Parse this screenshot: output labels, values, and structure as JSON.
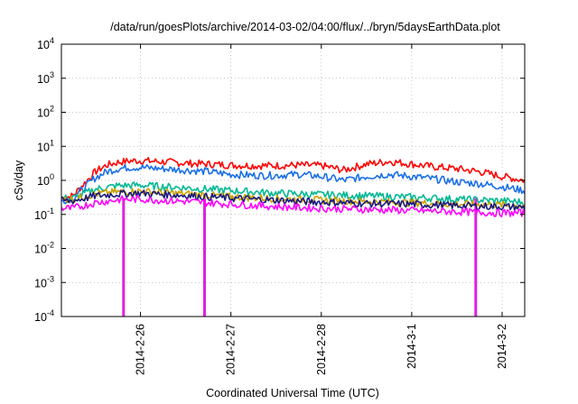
{
  "chart_data": {
    "type": "line",
    "title": "/data/run/goesPlots/archive/2014-03-02/04:00/flux/../bryn/5daysEarthData.plot",
    "xlabel": "Coordinated Universal Time (UTC)",
    "ylabel": "cSv/day",
    "yscale": "log",
    "ylim": [
      0.0001,
      10000
    ],
    "xlim": [
      "2014-02-25T03:00",
      "2014-03-02T06:00"
    ],
    "yticks": [
      {
        "value": 0.0001,
        "base": "10",
        "exp": "-4"
      },
      {
        "value": 0.001,
        "base": "10",
        "exp": "-3"
      },
      {
        "value": 0.01,
        "base": "10",
        "exp": "-2"
      },
      {
        "value": 0.1,
        "base": "10",
        "exp": "-1"
      },
      {
        "value": 1,
        "base": "10",
        "exp": "0"
      },
      {
        "value": 10,
        "base": "10",
        "exp": "1"
      },
      {
        "value": 100,
        "base": "10",
        "exp": "2"
      },
      {
        "value": 1000,
        "base": "10",
        "exp": "3"
      },
      {
        "value": 10000,
        "base": "10",
        "exp": "4"
      }
    ],
    "xticks": [
      {
        "value": "2014-02-26T00:00",
        "label": "2014-2-26"
      },
      {
        "value": "2014-02-27T00:00",
        "label": "2014-2-27"
      },
      {
        "value": "2014-02-28T00:00",
        "label": "2014-2-28"
      },
      {
        "value": "2014-03-01T00:00",
        "label": "2014-3-1"
      },
      {
        "value": "2014-03-02T00:00",
        "label": "2014-3-2"
      }
    ],
    "grid": true,
    "series": [
      {
        "color": "#ff0000",
        "x": [
          "2014-02-25T03:00",
          "2014-02-25T06:00",
          "2014-02-25T09:00",
          "2014-02-25T12:00",
          "2014-02-25T15:00",
          "2014-02-25T18:00",
          "2014-02-25T21:00",
          "2014-02-26T00:00",
          "2014-02-26T06:00",
          "2014-02-26T12:00",
          "2014-02-26T18:00",
          "2014-02-27T00:00",
          "2014-02-27T06:00",
          "2014-02-27T12:00",
          "2014-02-27T18:00",
          "2014-02-28T00:00",
          "2014-02-28T06:00",
          "2014-02-28T12:00",
          "2014-02-28T18:00",
          "2014-03-01T00:00",
          "2014-03-01T06:00",
          "2014-03-01T12:00",
          "2014-03-01T18:00",
          "2014-03-02T00:00",
          "2014-03-02T06:00"
        ],
        "y": [
          0.3,
          0.35,
          0.8,
          1.8,
          2.8,
          3.4,
          3.7,
          3.8,
          3.5,
          3.2,
          3.0,
          2.8,
          2.7,
          2.7,
          2.8,
          2.7,
          2.0,
          3.0,
          3.6,
          3.0,
          2.5,
          2.2,
          1.8,
          1.3,
          1.0
        ]
      },
      {
        "color": "#1a6fe8",
        "x": [
          "2014-02-25T03:00",
          "2014-02-25T06:00",
          "2014-02-25T09:00",
          "2014-02-25T12:00",
          "2014-02-25T15:00",
          "2014-02-25T18:00",
          "2014-02-25T21:00",
          "2014-02-26T00:00",
          "2014-02-26T06:00",
          "2014-02-26T12:00",
          "2014-02-26T18:00",
          "2014-02-27T00:00",
          "2014-02-27T06:00",
          "2014-02-27T12:00",
          "2014-02-27T18:00",
          "2014-02-28T00:00",
          "2014-02-28T06:00",
          "2014-02-28T12:00",
          "2014-02-28T18:00",
          "2014-03-01T00:00",
          "2014-03-01T06:00",
          "2014-03-01T12:00",
          "2014-03-01T18:00",
          "2014-03-02T00:00",
          "2014-03-02T06:00"
        ],
        "y": [
          0.25,
          0.3,
          0.6,
          1.2,
          1.8,
          2.2,
          2.4,
          2.4,
          2.2,
          2.0,
          1.8,
          1.5,
          1.4,
          1.4,
          1.5,
          1.3,
          1.0,
          1.3,
          1.5,
          1.3,
          1.1,
          0.9,
          0.8,
          0.65,
          0.5
        ]
      },
      {
        "color": "#00b894",
        "x": [
          "2014-02-25T03:00",
          "2014-02-25T06:00",
          "2014-02-25T12:00",
          "2014-02-25T18:00",
          "2014-02-26T00:00",
          "2014-02-26T12:00",
          "2014-02-27T00:00",
          "2014-02-27T12:00",
          "2014-02-28T00:00",
          "2014-02-28T12:00",
          "2014-03-01T00:00",
          "2014-03-01T12:00",
          "2014-03-02T00:00",
          "2014-03-02T06:00"
        ],
        "y": [
          0.3,
          0.3,
          0.55,
          0.7,
          0.72,
          0.6,
          0.5,
          0.42,
          0.38,
          0.35,
          0.32,
          0.28,
          0.25,
          0.23
        ]
      },
      {
        "color": "#c8a000",
        "x": [
          "2014-02-25T03:00",
          "2014-02-25T06:00",
          "2014-02-25T12:00",
          "2014-02-25T18:00",
          "2014-02-26T00:00",
          "2014-02-26T12:00",
          "2014-02-27T00:00",
          "2014-02-27T12:00",
          "2014-02-28T00:00",
          "2014-02-28T12:00",
          "2014-03-01T00:00",
          "2014-03-01T12:00",
          "2014-03-02T00:00",
          "2014-03-02T06:00"
        ],
        "y": [
          0.28,
          0.28,
          0.4,
          0.46,
          0.48,
          0.4,
          0.33,
          0.29,
          0.26,
          0.24,
          0.22,
          0.2,
          0.19,
          0.18
        ]
      },
      {
        "color": "#1a1a80",
        "x": [
          "2014-02-25T03:00",
          "2014-02-25T06:00",
          "2014-02-25T12:00",
          "2014-02-25T18:00",
          "2014-02-26T00:00",
          "2014-02-26T12:00",
          "2014-02-27T00:00",
          "2014-02-27T12:00",
          "2014-02-28T00:00",
          "2014-02-28T12:00",
          "2014-03-01T00:00",
          "2014-03-01T12:00",
          "2014-03-02T00:00",
          "2014-03-02T06:00"
        ],
        "y": [
          0.25,
          0.25,
          0.35,
          0.4,
          0.42,
          0.36,
          0.3,
          0.26,
          0.23,
          0.21,
          0.2,
          0.18,
          0.17,
          0.16
        ]
      },
      {
        "color": "#ff00ff",
        "x": [
          "2014-02-25T03:00",
          "2014-02-25T06:00",
          "2014-02-25T12:00",
          "2014-02-25T18:00",
          "2014-02-26T00:00",
          "2014-02-26T12:00",
          "2014-02-27T00:00",
          "2014-02-27T12:00",
          "2014-02-28T00:00",
          "2014-02-28T12:00",
          "2014-03-01T00:00",
          "2014-03-01T12:00",
          "2014-03-02T00:00",
          "2014-03-02T06:00"
        ],
        "y": [
          0.15,
          0.15,
          0.22,
          0.27,
          0.28,
          0.24,
          0.2,
          0.17,
          0.15,
          0.14,
          0.13,
          0.12,
          0.11,
          0.11
        ]
      }
    ],
    "dropouts": [
      {
        "x": "2014-02-25T19:30",
        "y": 0.0001,
        "color": "#e020e0"
      },
      {
        "x": "2014-02-26T17:00",
        "y": 0.0001,
        "color": "#e020e0"
      },
      {
        "x": "2014-03-01T17:00",
        "y": 0.0001,
        "color": "#e020e0"
      }
    ]
  }
}
